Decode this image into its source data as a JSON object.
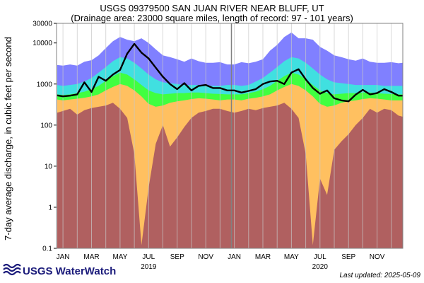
{
  "chart_data": {
    "type": "area",
    "title": "USGS 09379500 SAN JUAN RIVER NEAR BLUFF, UT",
    "subtitle": "(Drainage area: 23000 square miles, length of record: 97 - 101 years)",
    "ylabel": "7-day average discharge, in cubic feet per second",
    "yscale": "log",
    "ylim": [
      0.1,
      30000
    ],
    "y_ticks": [
      "0.1",
      "1",
      "10",
      "100",
      "1000",
      "10000",
      "30000"
    ],
    "y_tick_values": [
      0.1,
      1,
      10,
      100,
      1000,
      10000,
      30000
    ],
    "x_month_labels": [
      "JAN",
      "MAR",
      "MAY",
      "JUL",
      "SEP",
      "NOV",
      "JAN",
      "MAR",
      "MAY",
      "JUL",
      "SEP",
      "NOV"
    ],
    "x_month_values": [
      1,
      3,
      5,
      7,
      9,
      11,
      13,
      15,
      17,
      19,
      21,
      23
    ],
    "x_year_labels": [
      "2019",
      "2020"
    ],
    "x_year_values": [
      7,
      19
    ],
    "xlim": [
      0.55,
      24.8
    ],
    "year_divider_x": 12.8,
    "grid": true,
    "legend": "none",
    "colors": {
      "min": "#b06060",
      "p10": "#ffc060",
      "p25": "#40ff40",
      "p75": "#40e0e0",
      "p90": "#8080ff",
      "max": "#8080ff",
      "flow": "#000000",
      "grid": "#c8c8c8",
      "divider": "#808080"
    },
    "x": [
      0.6,
      1.0,
      1.5,
      2.0,
      2.5,
      3.0,
      3.5,
      4.0,
      4.5,
      5.0,
      5.5,
      6.0,
      6.5,
      7.0,
      7.5,
      8.0,
      8.5,
      9.0,
      9.5,
      10.0,
      10.5,
      11.0,
      11.5,
      12.0,
      12.5,
      13.0,
      13.5,
      14.0,
      14.5,
      15.0,
      15.5,
      16.0,
      16.5,
      17.0,
      17.5,
      18.0,
      18.5,
      19.0,
      19.5,
      20.0,
      20.5,
      21.0,
      21.5,
      22.0,
      22.5,
      23.0,
      23.5,
      24.0,
      24.5,
      24.8
    ],
    "series": [
      {
        "key": "max",
        "values": [
          2900,
          2800,
          3000,
          2800,
          3500,
          3800,
          5000,
          7500,
          11000,
          14000,
          12000,
          11000,
          13000,
          10000,
          7000,
          5000,
          4500,
          4000,
          3500,
          4200,
          3600,
          3300,
          3300,
          3400,
          3000,
          3000,
          3400,
          3200,
          3500,
          4000,
          6500,
          9000,
          14000,
          18000,
          13000,
          13000,
          12000,
          8000,
          6500,
          5000,
          4500,
          4000,
          3700,
          4200,
          3500,
          3300,
          3300,
          3400,
          3200,
          3300
        ]
      },
      {
        "key": "p90",
        "values": [
          1700,
          1600,
          1700,
          1700,
          2000,
          2400,
          3200,
          4500,
          6500,
          7500,
          7000,
          5500,
          4200,
          2900,
          2200,
          1900,
          1800,
          1700,
          1600,
          1500,
          1500,
          1500,
          1500,
          1600,
          1700,
          1700,
          1600,
          1700,
          2000,
          2400,
          3300,
          4500,
          6500,
          7500,
          7000,
          5500,
          4000,
          2900,
          2200,
          1900,
          1800,
          1700,
          1600,
          1500,
          1500,
          1500,
          1500,
          1500,
          1500,
          1500
        ]
      },
      {
        "key": "p75",
        "values": [
          950,
          900,
          950,
          1000,
          1150,
          1400,
          1900,
          2600,
          3600,
          4500,
          4200,
          3300,
          2400,
          1700,
          1300,
          1100,
          1050,
          1000,
          950,
          950,
          950,
          950,
          900,
          900,
          950,
          950,
          900,
          950,
          1150,
          1400,
          1900,
          2600,
          3600,
          4500,
          4200,
          3300,
          2400,
          1700,
          1300,
          1100,
          1050,
          1000,
          950,
          950,
          950,
          950,
          900,
          900,
          900,
          900
        ]
      },
      {
        "key": "p25",
        "values": [
          560,
          540,
          560,
          600,
          650,
          750,
          900,
          1200,
          1550,
          1900,
          1700,
          1300,
          950,
          700,
          600,
          560,
          580,
          600,
          600,
          620,
          620,
          600,
          580,
          570,
          560,
          560,
          560,
          600,
          650,
          750,
          900,
          1200,
          1550,
          1900,
          1700,
          1300,
          950,
          700,
          600,
          560,
          580,
          600,
          600,
          620,
          620,
          600,
          580,
          570,
          560,
          560
        ]
      },
      {
        "key": "p10",
        "values": [
          420,
          400,
          420,
          440,
          460,
          500,
          560,
          700,
          850,
          1000,
          900,
          700,
          500,
          330,
          280,
          300,
          350,
          380,
          400,
          430,
          450,
          440,
          420,
          400,
          420,
          420,
          400,
          440,
          460,
          500,
          560,
          700,
          850,
          1000,
          900,
          700,
          500,
          330,
          280,
          300,
          350,
          380,
          400,
          430,
          450,
          440,
          420,
          400,
          400,
          400
        ]
      },
      {
        "key": "min",
        "values": [
          200,
          220,
          250,
          180,
          230,
          260,
          280,
          300,
          350,
          250,
          150,
          20,
          0.12,
          3,
          35,
          100,
          30,
          50,
          90,
          150,
          200,
          220,
          250,
          250,
          220,
          200,
          220,
          250,
          230,
          260,
          280,
          300,
          350,
          250,
          150,
          20,
          0.12,
          5,
          2,
          25,
          40,
          60,
          100,
          150,
          250,
          200,
          250,
          230,
          170,
          160
        ]
      },
      {
        "key": "flow",
        "values": [
          530,
          500,
          520,
          560,
          1100,
          640,
          1500,
          1200,
          1700,
          2200,
          5500,
          9500,
          5800,
          4200,
          2500,
          1500,
          1000,
          750,
          1050,
          700,
          900,
          950,
          800,
          800,
          700,
          700,
          620,
          680,
          750,
          1000,
          1150,
          1200,
          1000,
          1900,
          2300,
          1300,
          800,
          580,
          700,
          450,
          400,
          380,
          550,
          720,
          560,
          600,
          750,
          640,
          520,
          520
        ]
      }
    ],
    "series_notes": "values per x point for the envelope areas (min/p10/p25/p75/p90/max) and the plotted 7-day flow line"
  },
  "header": {
    "title": "USGS 09379500 SAN JUAN RIVER NEAR BLUFF, UT",
    "subtitle": "(Drainage area: 23000 square miles, length of record: 97 - 101 years)"
  },
  "footer": {
    "logo_text": "USGS WaterWatch",
    "last_updated": "Last updated: 2025-05-09"
  }
}
